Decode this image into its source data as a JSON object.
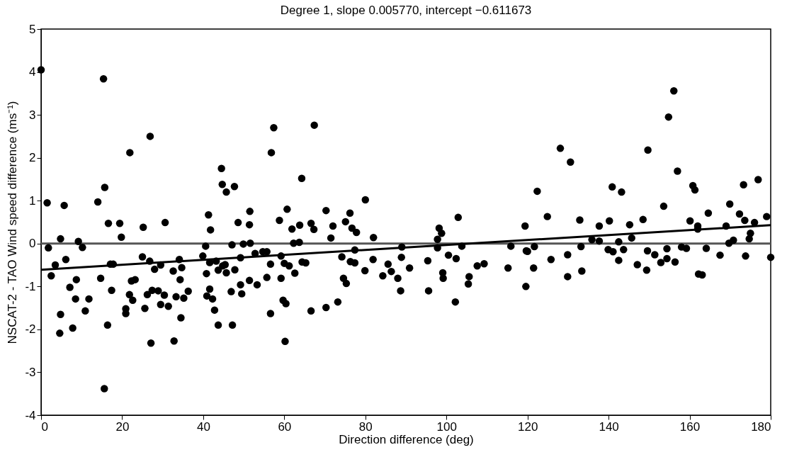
{
  "chart_data": {
    "type": "scatter",
    "title": "Degree 1, slope 0.005770, intercept −0.611673",
    "xlabel": "Direction difference (deg)",
    "ylabel": "NSCAT-2 - TAO Wind speed difference (ms⁻¹)",
    "xlim": [
      0,
      180
    ],
    "xticks": [
      0,
      20,
      40,
      60,
      80,
      100,
      120,
      140,
      160,
      180
    ],
    "ylim": [
      -4,
      5
    ],
    "yticks": [
      -4,
      -3,
      -2,
      -1,
      0,
      1,
      2,
      3,
      4,
      5
    ],
    "grid": false,
    "ref_lines": [
      {
        "axis": "y",
        "value": 0,
        "color": "#555555"
      }
    ],
    "series": [
      {
        "marker": "circle",
        "color": "#000000",
        "x": [
          0,
          1.5,
          1.8,
          2.5,
          3.5,
          15.4,
          26.9,
          21.9,
          44.5,
          44.7,
          45.7,
          47.7,
          15.7,
          14.0,
          5.7,
          41.3,
          51.5,
          16.6,
          19.4,
          30.6,
          25.2,
          48.6,
          51.4,
          41.8,
          19.8,
          60.7,
          58.8,
          61.9,
          57.4,
          56.8,
          4.8,
          9.2,
          10.2,
          6.1,
          17.1,
          17.8,
          25.0,
          26.8,
          28.0,
          29.5,
          32.6,
          34.1,
          34.7,
          14.7,
          7.1,
          8.7,
          17.4,
          22.3,
          23.2,
          8.5,
          11.8,
          10.9,
          4.8,
          4.6,
          7.8,
          21.8,
          22.6,
          20.9,
          20.9,
          16.4,
          15.6,
          27.1,
          32.8,
          25.6,
          26.2,
          27.4,
          28.9,
          30.4,
          29.5,
          31.4,
          33.3,
          35.2,
          36.3,
          34.3,
          34.5,
          39.9,
          40.8,
          41.6,
          43.2,
          43.7,
          44.8,
          45.7,
          45.4,
          47.8,
          41.6,
          40.9,
          42.3,
          42.8,
          43.7,
          47.2,
          46.9,
          49.2,
          49.5,
          51.4,
          53.3,
          49.2,
          52.8,
          54.7,
          55.7,
          56.6,
          55.7,
          59.2,
          60.0,
          61.2,
          59.2,
          56.6,
          59.7,
          60.4,
          60.2,
          40.6,
          47.1,
          49.9,
          51.6,
          62.3,
          67.4,
          64.3,
          80.0,
          70.3,
          76.2,
          102.9,
          63.8,
          66.6,
          67.3,
          72.0,
          75.1,
          76.7,
          77.8,
          71.5,
          82.0,
          98.2,
          98.8,
          97.8,
          119.4,
          63.7,
          62.6,
          64.4,
          65.3,
          74.2,
          77.4,
          76.3,
          77.4,
          79.9,
          81.9,
          85.6,
          84.3,
          86.4,
          88.0,
          88.7,
          88.9,
          90.9,
          89.0,
          95.4,
          95.6,
          97.8,
          99.1,
          99.2,
          100.5,
          102.4,
          103.8,
          102.2,
          105.6,
          105.4,
          107.6,
          109.3,
          115.2,
          115.9,
          119.6,
          119.7,
          74.6,
          75.3,
          73.2,
          70.3,
          66.6,
          156.1,
          154.8,
          128.1,
          149.7,
          130.6,
          157.0,
          122.4,
          140.9,
          143.2,
          160.8,
          161.3,
          173.3,
          176.9,
          153.6,
          169.9,
          164.6,
          172.3,
          124.9,
          179.0,
          132.9,
          137.7,
          140.2,
          145.2,
          148.5,
          160.1,
          162.0,
          162.0,
          169.0,
          173.6,
          176.0,
          175.0,
          174.7,
          135.9,
          137.7,
          142.5,
          145.7,
          169.7,
          170.8,
          120.0,
          121.7,
          133.2,
          139.9,
          141.1,
          143.7,
          149.6,
          151.4,
          154.4,
          158.0,
          159.2,
          164.1,
          129.9,
          125.8,
          121.5,
          142.5,
          147.1,
          149.4,
          152.9,
          154.4,
          156.4,
          167.5,
          173.8,
          180.0,
          129.9,
          133.4,
          162.2,
          163.1
        ],
        "values": [
          4.05,
          0.95,
          -0.1,
          -0.75,
          -0.5,
          3.84,
          2.5,
          2.12,
          1.75,
          1.38,
          1.2,
          1.33,
          1.31,
          0.97,
          0.89,
          0.67,
          0.75,
          0.47,
          0.47,
          0.49,
          0.38,
          0.49,
          0.44,
          0.32,
          0.15,
          0.8,
          0.54,
          0.34,
          2.7,
          2.12,
          0.11,
          0.05,
          -0.09,
          -0.37,
          -0.48,
          -0.48,
          -0.31,
          -0.41,
          -0.6,
          -0.5,
          -0.64,
          -0.37,
          -0.56,
          -0.81,
          -1.02,
          -0.84,
          -1.09,
          -0.87,
          -0.84,
          -1.29,
          -1.29,
          -1.57,
          -1.65,
          -2.09,
          -1.97,
          -1.19,
          -1.32,
          -1.52,
          -1.63,
          -1.9,
          -3.38,
          -2.32,
          -2.27,
          -1.51,
          -1.19,
          -1.09,
          -1.1,
          -1.2,
          -1.42,
          -1.46,
          -1.24,
          -1.27,
          -1.11,
          -0.84,
          -1.73,
          -0.29,
          -0.7,
          -0.44,
          -0.41,
          -0.62,
          -0.52,
          -0.68,
          -0.49,
          -0.61,
          -1.06,
          -1.22,
          -1.29,
          -1.55,
          -1.9,
          -1.9,
          -1.12,
          -0.96,
          -1.17,
          -0.86,
          -0.96,
          -0.33,
          -0.23,
          -0.19,
          -0.19,
          -0.48,
          -0.79,
          -0.29,
          -0.46,
          -0.52,
          -0.81,
          -1.63,
          -1.32,
          -1.4,
          -2.28,
          -0.06,
          -0.03,
          -0.01,
          0.01,
          0.01,
          2.76,
          1.52,
          1.02,
          0.77,
          0.71,
          0.61,
          0.43,
          0.47,
          0.33,
          0.41,
          0.51,
          0.36,
          0.26,
          0.13,
          0.14,
          0.36,
          0.24,
          0.1,
          0.41,
          0.03,
          -0.69,
          -0.43,
          -0.45,
          -0.31,
          -0.15,
          -0.42,
          -0.45,
          -0.63,
          -0.37,
          -0.48,
          -0.75,
          -0.65,
          -0.81,
          -1.1,
          -0.32,
          -0.57,
          -0.08,
          -0.4,
          -1.1,
          -0.1,
          -0.68,
          -0.81,
          -0.27,
          -0.35,
          -0.06,
          -1.36,
          -0.77,
          -0.94,
          -0.52,
          -0.47,
          -0.57,
          -0.06,
          -1.0,
          -0.17,
          -0.81,
          -0.93,
          -1.36,
          -1.49,
          -1.57,
          3.56,
          2.95,
          2.22,
          2.18,
          1.9,
          1.69,
          1.22,
          1.32,
          1.2,
          1.35,
          1.25,
          1.37,
          1.49,
          0.87,
          0.92,
          0.71,
          0.69,
          0.63,
          0.63,
          0.55,
          0.41,
          0.53,
          0.44,
          0.56,
          0.53,
          0.41,
          0.34,
          0.41,
          0.54,
          0.49,
          0.24,
          0.11,
          0.09,
          0.06,
          0.04,
          0.13,
          0.01,
          0.08,
          -0.18,
          -0.07,
          -0.07,
          -0.14,
          -0.19,
          -0.14,
          -0.17,
          -0.26,
          -0.12,
          -0.08,
          -0.11,
          -0.11,
          -0.26,
          -0.37,
          -0.57,
          -0.39,
          -0.49,
          -0.62,
          -0.44,
          -0.35,
          -0.43,
          -0.27,
          -0.29,
          -0.32,
          -0.77,
          -0.64,
          -0.71,
          -0.73
        ]
      },
      {
        "type": "line",
        "color": "#000000",
        "x": [
          0,
          180
        ],
        "values": [
          -0.61,
          0.43
        ]
      }
    ]
  }
}
